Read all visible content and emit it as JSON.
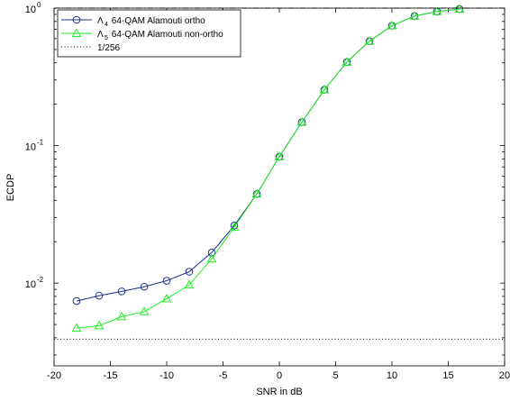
{
  "chart_data": {
    "type": "line",
    "title": "",
    "xlabel": "SNR in dB",
    "ylabel": "ECDP",
    "xscale": "linear",
    "yscale": "log",
    "xlim": [
      -20,
      20
    ],
    "ylim": [
      0.0025,
      1.0
    ],
    "xticks": [
      -20,
      -15,
      -10,
      -5,
      0,
      5,
      10,
      15,
      20
    ],
    "xtick_labels": [
      "-20",
      "-15",
      "-10",
      "-5",
      "0",
      "5",
      "10",
      "15",
      "20"
    ],
    "yticks": [
      {
        "value": 0.01,
        "base": "10",
        "exp": "-2"
      },
      {
        "value": 0.1,
        "base": "10",
        "exp": "-1"
      },
      {
        "value": 1.0,
        "base": "10",
        "exp": "0"
      }
    ],
    "grid": false,
    "legend_position": "top-left",
    "legend": {
      "items": [
        {
          "symbol": "Λ",
          "sub": "4",
          "text": " 64-QAM Alamouti ortho",
          "series": 0
        },
        {
          "symbol": "Λ",
          "sub": "5",
          "text": " 64-QAM Alamouti non-ortho",
          "series": 1
        },
        {
          "symbol": "",
          "sub": "",
          "text": "1/256",
          "series": 2
        }
      ]
    },
    "series": [
      {
        "color": "#1f2f8f",
        "marker": "circle",
        "linestyle": "solid",
        "x": [
          -18,
          -16,
          -14,
          -12,
          -10,
          -8,
          -6,
          -4,
          -2,
          0,
          2,
          4,
          6,
          8,
          10,
          12,
          14,
          16
        ],
        "y": [
          0.0074,
          0.0081,
          0.0087,
          0.0094,
          0.0104,
          0.0121,
          0.0167,
          0.0262,
          0.0445,
          0.083,
          0.148,
          0.255,
          0.405,
          0.575,
          0.745,
          0.875,
          0.945,
          0.985
        ]
      },
      {
        "color": "#22ee22",
        "marker": "triangle",
        "linestyle": "solid",
        "x": [
          -18,
          -16,
          -14,
          -12,
          -10,
          -8,
          -6,
          -4,
          -2,
          0,
          2,
          4,
          6,
          8,
          10,
          12,
          14,
          16
        ],
        "y": [
          0.0047,
          0.0049,
          0.0057,
          0.0062,
          0.0077,
          0.0097,
          0.015,
          0.0255,
          0.0445,
          0.083,
          0.148,
          0.255,
          0.405,
          0.575,
          0.745,
          0.875,
          0.945,
          0.985
        ]
      },
      {
        "color": "#000000",
        "marker": "none",
        "linestyle": "dotted",
        "x": [
          -20,
          20
        ],
        "y": [
          0.00390625,
          0.00390625
        ]
      },
      {
        "color": "#000000",
        "marker": "none",
        "linestyle": "dashdot",
        "x": [
          -20,
          20
        ],
        "y": [
          1.0,
          1.0
        ]
      }
    ]
  }
}
